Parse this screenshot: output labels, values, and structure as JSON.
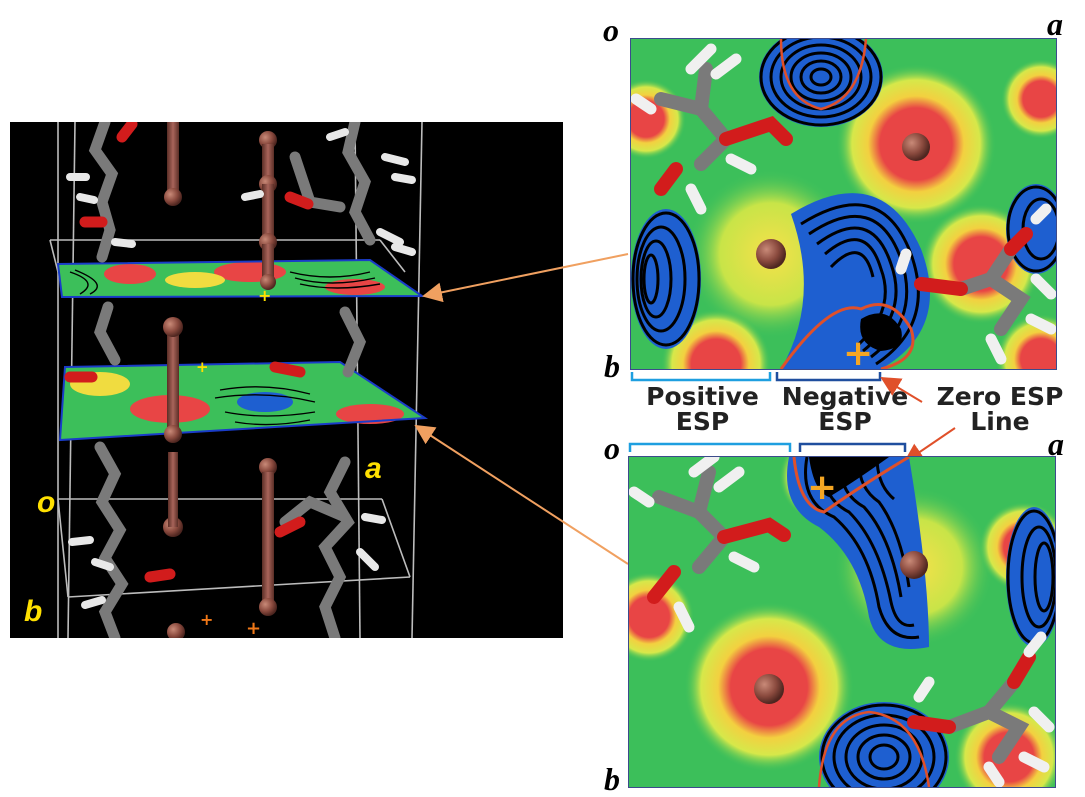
{
  "crystal_view": {
    "axis_label_o": "o",
    "axis_label_a": "a",
    "axis_label_b": "b"
  },
  "top_map": {
    "corner_o": "o",
    "corner_a": "a",
    "corner_b": "b"
  },
  "bottom_map": {
    "corner_o": "o",
    "corner_a": "a",
    "corner_b": "b"
  },
  "annotations": {
    "positive_esp": "Positive\nESP",
    "negative_esp": "Negative\nESP",
    "zero_esp_line": "Zero ESP\nLine"
  },
  "colors": {
    "positive_bracket": "#1e9fe0",
    "negative_bracket": "#1f4e9e",
    "zero_line": "#e0502a",
    "connector": "#f0a060",
    "map_green": "#3cbf5a",
    "map_red": "#ec4848",
    "map_blue": "#1e5fd0",
    "marker": "#f5a623"
  }
}
